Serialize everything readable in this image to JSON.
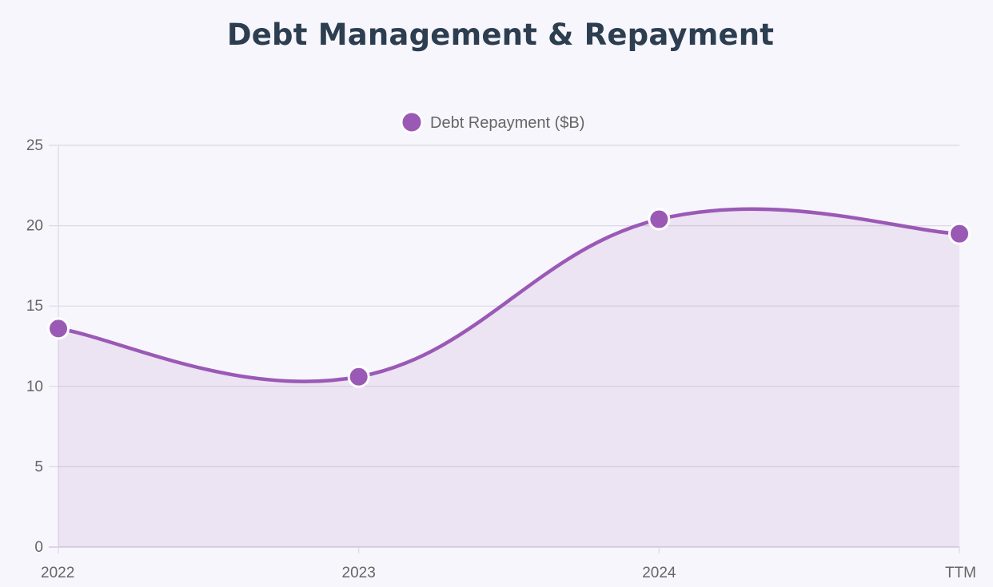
{
  "chart_data": {
    "type": "line",
    "title": "Debt Management & Repayment",
    "categories": [
      "2022",
      "2023",
      "2024",
      "TTM"
    ],
    "series": [
      {
        "name": "Debt Repayment ($B)",
        "values": [
          13.6,
          10.6,
          20.4,
          19.5
        ],
        "fill": true,
        "smooth": true
      }
    ],
    "ylim": [
      0,
      25
    ],
    "yticks": [
      0,
      5,
      10,
      15,
      20,
      25
    ],
    "grid": true,
    "legend_position": "top",
    "colors": {
      "line": "#9b59b6",
      "area": "rgba(155, 89, 182, 0.12)",
      "marker_border": "#ffffff",
      "grid": "#ddd8e6",
      "axis": "#c9c2d6",
      "title": "#2c3e50",
      "ticks": "#666666",
      "background": "#f7f6fc"
    }
  }
}
